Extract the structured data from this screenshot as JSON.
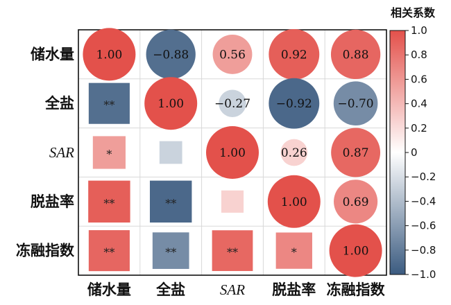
{
  "chart_data": {
    "type": "heatmap",
    "variables": [
      "储水量",
      "全盐",
      "SAR",
      "脱盐率",
      "冻融指数"
    ],
    "matrix": [
      [
        1.0,
        -0.88,
        0.56,
        0.92,
        0.88
      ],
      [
        -0.88,
        1.0,
        -0.27,
        -0.92,
        -0.7
      ],
      [
        0.56,
        -0.27,
        1.0,
        0.26,
        0.87
      ],
      [
        0.92,
        -0.92,
        0.26,
        1.0,
        0.69
      ],
      [
        0.88,
        -0.7,
        0.87,
        0.69,
        1.0
      ]
    ],
    "value_labels": [
      [
        "1.00",
        "−0.88",
        "0.56",
        "0.92",
        "0.88"
      ],
      [
        "",
        "1.00",
        "−0.27",
        "−0.92",
        "−0.70"
      ],
      [
        "",
        "",
        "1.00",
        "0.26",
        "0.87"
      ],
      [
        "",
        "",
        "",
        "1.00",
        "0.69"
      ],
      [
        "",
        "",
        "",
        "",
        "1.00"
      ]
    ],
    "significance": [
      [
        "",
        "",
        "",
        "",
        ""
      ],
      [
        "**",
        "",
        "",
        "",
        ""
      ],
      [
        "*",
        "",
        "",
        "",
        ""
      ],
      [
        "**",
        "**",
        "",
        "",
        ""
      ],
      [
        "**",
        "**",
        "**",
        "*",
        ""
      ]
    ],
    "upper_shape": "circle",
    "lower_shape": "square",
    "colorbar": {
      "title": "相关系数",
      "range": [
        -1.0,
        1.0
      ],
      "ticks": [
        "1.0",
        "0.8",
        "0.6",
        "0.4",
        "0.2",
        "0",
        "−0.2",
        "−0.4",
        "−0.6",
        "−0.8",
        "−1.0"
      ],
      "colors": {
        "negative": "#3b5b80",
        "middle": "#ffffff",
        "positive": "#e3514b"
      }
    },
    "grid": true
  }
}
